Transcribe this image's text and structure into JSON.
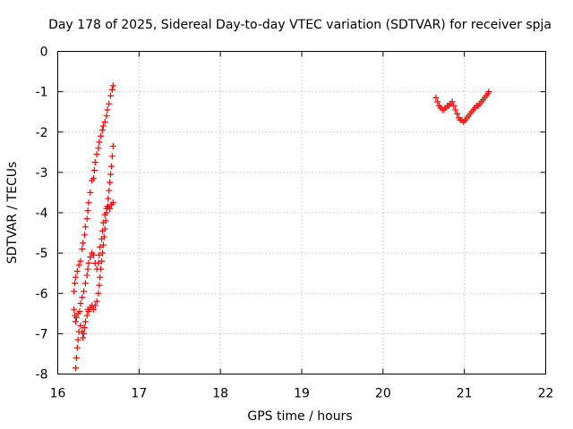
{
  "chart_data": {
    "type": "scatter",
    "title": "Day 178 of 2025, Sidereal Day-to-day VTEC variation (SDTVAR) for receiver spja",
    "xlabel": "GPS time / hours",
    "ylabel": "SDTVAR / TECUs",
    "xlim": [
      16,
      22
    ],
    "ylim": [
      -8,
      0
    ],
    "xticks": [
      16,
      17,
      18,
      19,
      20,
      21,
      22
    ],
    "yticks": [
      0,
      -1,
      -2,
      -3,
      -4,
      -5,
      -6,
      -7,
      -8
    ],
    "grid": true,
    "marker": "plus",
    "color": "#ff0000",
    "series": [
      {
        "name": "SDTVAR",
        "points": [
          [
            16.22,
            -7.85
          ],
          [
            16.23,
            -7.6
          ],
          [
            16.24,
            -7.35
          ],
          [
            16.25,
            -7.15
          ],
          [
            16.26,
            -6.95
          ],
          [
            16.28,
            -6.8
          ],
          [
            16.3,
            -6.95
          ],
          [
            16.31,
            -7.1
          ],
          [
            16.32,
            -7.0
          ],
          [
            16.33,
            -6.85
          ],
          [
            16.34,
            -6.7
          ],
          [
            16.36,
            -6.55
          ],
          [
            16.37,
            -6.4
          ],
          [
            16.38,
            -6.45
          ],
          [
            16.4,
            -6.35
          ],
          [
            16.42,
            -6.3
          ],
          [
            16.44,
            -6.4
          ],
          [
            16.46,
            -6.3
          ],
          [
            16.48,
            -6.2
          ],
          [
            16.5,
            -6.0
          ],
          [
            16.51,
            -5.8
          ],
          [
            16.52,
            -5.6
          ],
          [
            16.53,
            -5.4
          ],
          [
            16.54,
            -5.2
          ],
          [
            16.55,
            -5.0
          ],
          [
            16.56,
            -4.8
          ],
          [
            16.57,
            -4.6
          ],
          [
            16.58,
            -4.4
          ],
          [
            16.59,
            -4.2
          ],
          [
            16.6,
            -4.0
          ],
          [
            16.61,
            -3.85
          ],
          [
            16.62,
            -3.65
          ],
          [
            16.63,
            -3.45
          ],
          [
            16.64,
            -3.25
          ],
          [
            16.65,
            -3.05
          ],
          [
            16.66,
            -2.85
          ],
          [
            16.67,
            -2.6
          ],
          [
            16.68,
            -2.35
          ],
          [
            16.2,
            -5.95
          ],
          [
            16.21,
            -5.75
          ],
          [
            16.22,
            -5.6
          ],
          [
            16.24,
            -5.45
          ],
          [
            16.26,
            -5.3
          ],
          [
            16.28,
            -5.2
          ],
          [
            16.3,
            -4.9
          ],
          [
            16.31,
            -4.75
          ],
          [
            16.33,
            -4.55
          ],
          [
            16.34,
            -4.35
          ],
          [
            16.36,
            -4.15
          ],
          [
            16.37,
            -3.95
          ],
          [
            16.38,
            -3.75
          ],
          [
            16.4,
            -3.5
          ],
          [
            16.42,
            -3.2
          ],
          [
            16.44,
            -3.15
          ],
          [
            16.45,
            -2.95
          ],
          [
            16.46,
            -2.75
          ],
          [
            16.48,
            -2.55
          ],
          [
            16.5,
            -2.4
          ],
          [
            16.51,
            -2.25
          ],
          [
            16.53,
            -2.1
          ],
          [
            16.55,
            -1.95
          ],
          [
            16.56,
            -1.85
          ],
          [
            16.58,
            -1.75
          ],
          [
            16.6,
            -1.6
          ],
          [
            16.61,
            -1.45
          ],
          [
            16.63,
            -1.3
          ],
          [
            16.65,
            -1.1
          ],
          [
            16.67,
            -0.95
          ],
          [
            16.68,
            -0.85
          ],
          [
            16.2,
            -6.4
          ],
          [
            16.21,
            -6.55
          ],
          [
            16.22,
            -6.7
          ],
          [
            16.23,
            -6.6
          ],
          [
            16.25,
            -6.5
          ],
          [
            16.27,
            -6.45
          ],
          [
            16.28,
            -6.25
          ],
          [
            16.3,
            -6.1
          ],
          [
            16.32,
            -5.95
          ],
          [
            16.34,
            -5.75
          ],
          [
            16.36,
            -5.55
          ],
          [
            16.37,
            -5.4
          ],
          [
            16.38,
            -5.25
          ],
          [
            16.4,
            -5.1
          ],
          [
            16.42,
            -5.0
          ],
          [
            16.44,
            -5.05
          ],
          [
            16.46,
            -5.25
          ],
          [
            16.48,
            -5.4
          ],
          [
            16.5,
            -5.25
          ],
          [
            16.51,
            -5.05
          ],
          [
            16.52,
            -4.85
          ],
          [
            16.54,
            -4.65
          ],
          [
            16.55,
            -4.45
          ],
          [
            16.56,
            -4.25
          ],
          [
            16.58,
            -4.05
          ],
          [
            16.6,
            -3.9
          ],
          [
            16.62,
            -3.85
          ],
          [
            16.64,
            -3.9
          ],
          [
            16.66,
            -3.8
          ],
          [
            16.68,
            -3.75
          ],
          [
            20.65,
            -1.15
          ],
          [
            20.67,
            -1.25
          ],
          [
            20.69,
            -1.35
          ],
          [
            20.71,
            -1.4
          ],
          [
            20.73,
            -1.45
          ],
          [
            20.75,
            -1.45
          ],
          [
            20.77,
            -1.4
          ],
          [
            20.79,
            -1.35
          ],
          [
            20.81,
            -1.35
          ],
          [
            20.83,
            -1.3
          ],
          [
            20.85,
            -1.25
          ],
          [
            20.87,
            -1.35
          ],
          [
            20.89,
            -1.45
          ],
          [
            20.91,
            -1.55
          ],
          [
            20.93,
            -1.65
          ],
          [
            20.95,
            -1.7
          ],
          [
            20.97,
            -1.7
          ],
          [
            20.99,
            -1.75
          ],
          [
            21.01,
            -1.7
          ],
          [
            21.03,
            -1.65
          ],
          [
            21.05,
            -1.6
          ],
          [
            21.07,
            -1.55
          ],
          [
            21.09,
            -1.5
          ],
          [
            21.11,
            -1.45
          ],
          [
            21.13,
            -1.4
          ],
          [
            21.15,
            -1.35
          ],
          [
            21.17,
            -1.35
          ],
          [
            21.19,
            -1.3
          ],
          [
            21.21,
            -1.25
          ],
          [
            21.23,
            -1.2
          ],
          [
            21.25,
            -1.15
          ],
          [
            21.27,
            -1.1
          ],
          [
            21.29,
            -1.05
          ],
          [
            21.3,
            -1.0
          ]
        ]
      }
    ]
  }
}
